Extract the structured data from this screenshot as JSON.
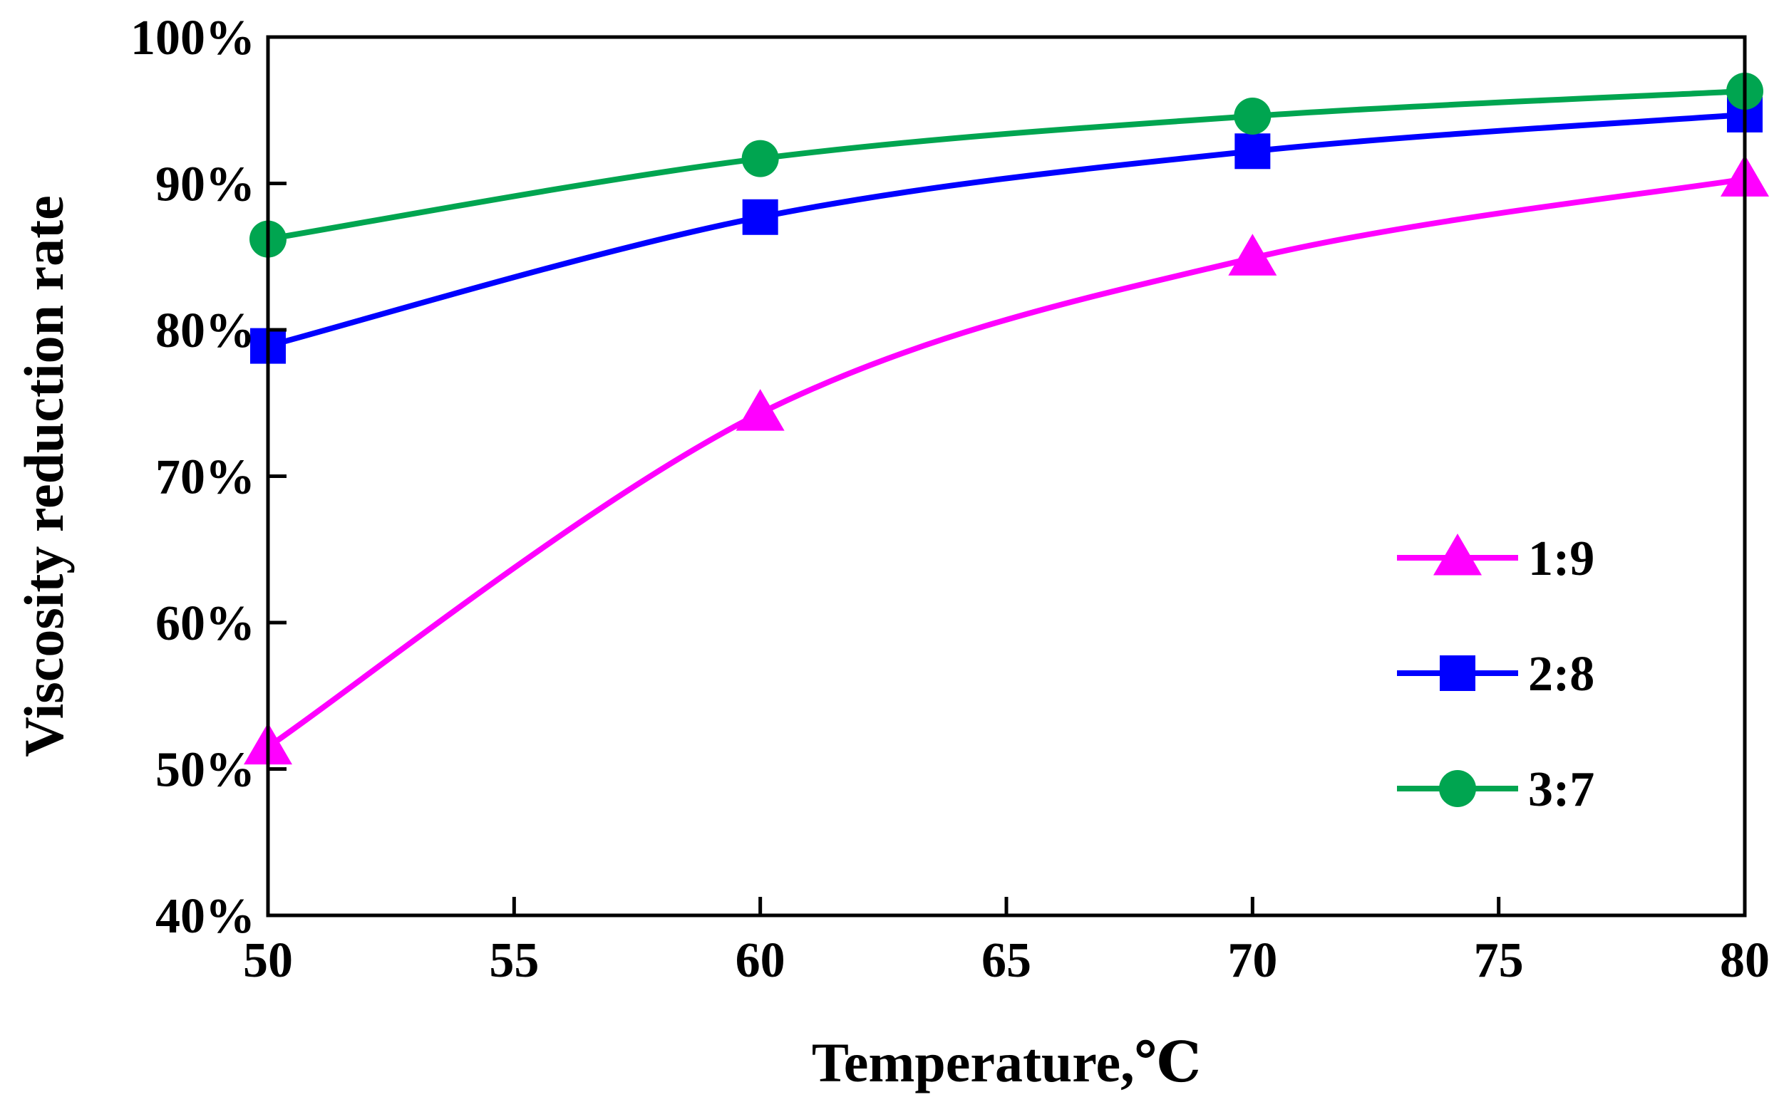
{
  "chart_data": {
    "type": "line",
    "title": "",
    "xlabel": "Temperature,℃",
    "ylabel": "Viscosity reduction rate",
    "x": [
      50,
      60,
      70,
      80
    ],
    "xlim": [
      50,
      80
    ],
    "xticks": [
      50,
      55,
      60,
      65,
      70,
      75,
      80
    ],
    "xtick_labels": [
      "50",
      "55",
      "60",
      "65",
      "70",
      "75",
      "80"
    ],
    "ylim": [
      0.4,
      1.0
    ],
    "yticks": [
      0.4,
      0.5,
      0.6,
      0.7,
      0.8,
      0.9,
      1.0
    ],
    "ytick_labels": [
      "40%",
      "50%",
      "60%",
      "70%",
      "80%",
      "90%",
      "100%"
    ],
    "grid": false,
    "legend_position": "right",
    "series": [
      {
        "name": "1:9",
        "marker": "triangle",
        "color": "#ff00ff",
        "values": [
          0.515,
          0.743,
          0.849,
          0.903
        ]
      },
      {
        "name": "2:8",
        "marker": "square",
        "color": "#0000ff",
        "values": [
          0.789,
          0.877,
          0.922,
          0.947
        ]
      },
      {
        "name": "3:7",
        "marker": "circle",
        "color": "#00a550",
        "values": [
          0.862,
          0.917,
          0.946,
          0.963
        ]
      }
    ]
  }
}
